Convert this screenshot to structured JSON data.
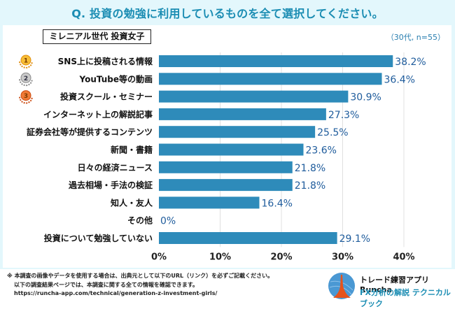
{
  "title": "Q. 投資の勉強に利用しているものを全て選択してください。",
  "group_label": "ミレニアル世代 投資女子",
  "sample_note": "（30代, n=55）",
  "colors": {
    "frame_bg": "#e3f7fc",
    "title": "#1b8db3",
    "bar": "#2e8bba",
    "value_label": "#1f5c9c",
    "gridline": "#e0e0e0",
    "medal_gold": "#f2a81d",
    "medal_silver": "#9a9a9a",
    "medal_bronze": "#e2601e"
  },
  "chart_data": {
    "type": "bar",
    "orientation": "horizontal",
    "title": "Q. 投資の勉強に利用しているものを全て選択してください。",
    "subtitle": "ミレニアル世代 投資女子",
    "xlabel": "",
    "ylabel": "",
    "xlim": [
      0,
      40
    ],
    "x_ticks": [
      0,
      10,
      20,
      30,
      40
    ],
    "x_tick_labels": [
      "0%",
      "10%",
      "20%",
      "30%",
      "40%"
    ],
    "grid": true,
    "categories": [
      "SNS上に投稿される情報",
      "YouTube等の動画",
      "投資スクール・セミナー",
      "インターネット上の解説記事",
      "証券会社等が提供するコンテンツ",
      "新聞・書籍",
      "日々の経済ニュース",
      "過去相場・手法の検証",
      "知人・友人",
      "その他",
      "投資について勉強していない"
    ],
    "values": [
      38.2,
      36.4,
      30.9,
      27.3,
      25.5,
      23.6,
      21.8,
      21.8,
      16.4,
      0,
      29.1
    ],
    "value_labels": [
      "38.2%",
      "36.4%",
      "30.9%",
      "27.3%",
      "25.5%",
      "23.6%",
      "21.8%",
      "21.8%",
      "16.4%",
      "0%",
      "29.1%"
    ],
    "rank_medals": [
      {
        "rank": "1",
        "type": "gold"
      },
      {
        "rank": "2",
        "type": "silver"
      },
      {
        "rank": "3",
        "type": "bronze"
      }
    ],
    "annotation": "（30代, n=55）"
  },
  "footer": {
    "line1": "※ 本調査の画像やデータを使用する場合は、出典元として以下のURL（リンク）を必ずご記載ください。",
    "line2": "以下の調査結果ページでは、本調査に関する全ての情報を確認できます。",
    "url": "https://runcha-app.com/technical/generation-z-investment-girls/",
    "brand_line1": "トレード練習アプリ  Runcha",
    "brand_line2": "FX分析の解説  テクニカルブック"
  }
}
